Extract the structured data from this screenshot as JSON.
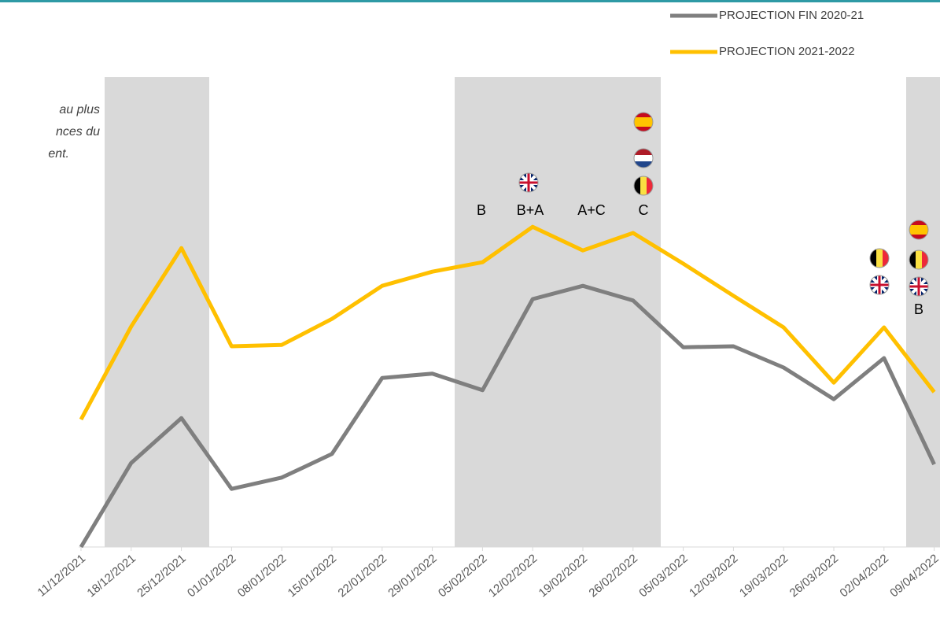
{
  "chart_data": {
    "type": "line",
    "categories": [
      "11/12/2021",
      "18/12/2021",
      "25/12/2021",
      "01/01/2022",
      "08/01/2022",
      "15/01/2022",
      "22/01/2022",
      "29/01/2022",
      "05/02/2022",
      "12/02/2022",
      "19/02/2022",
      "26/02/2022",
      "05/03/2022",
      "12/03/2022",
      "19/03/2022",
      "26/03/2022",
      "02/04/2022",
      "09/04/2022"
    ],
    "series": [
      {
        "name": "PROJECTION FIN 2020-21",
        "color": "#7f7f7f",
        "values": [
          0,
          17.8,
          27.3,
          12.3,
          14.7,
          19.7,
          35.8,
          36.7,
          33.2,
          52.5,
          55.3,
          52.2,
          42.3,
          42.5,
          38,
          31.3,
          40,
          17.5
        ]
      },
      {
        "name": "PROJECTION 2021-2022",
        "color": "#ffc000",
        "values": [
          27,
          46.7,
          63.3,
          42.5,
          42.8,
          48.3,
          55.3,
          58.3,
          60.3,
          67.8,
          62.8,
          66.5,
          60,
          53.2,
          46.5,
          34.8,
          46.5,
          32.8
        ]
      }
    ],
    "ylim": [
      0,
      100
    ],
    "annotations": [
      "B",
      "B+A",
      "A+C",
      "C",
      "B"
    ],
    "side_text": [
      "au plus",
      "nces du",
      "ent."
    ]
  }
}
